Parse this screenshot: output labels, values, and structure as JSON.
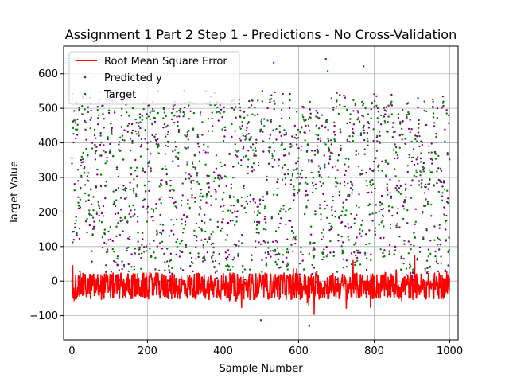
{
  "chart_data": {
    "type": "scatter",
    "title": "Assignment 1 Part 2 Step 1 - Predictions - No Cross-Validation",
    "xlabel": "Sample Number",
    "ylabel": "Target Value",
    "xlim": [
      -22,
      1022
    ],
    "ylim": [
      -170,
      680
    ],
    "xticks": [
      0,
      200,
      400,
      600,
      800,
      1000
    ],
    "yticks": [
      -100,
      0,
      100,
      200,
      300,
      400,
      500,
      600
    ],
    "grid": true,
    "legend_position": "top-left",
    "n_samples": 1000,
    "series": [
      {
        "name": "Root Mean Square Error",
        "kind": "line",
        "color": "#ff0000",
        "approx_mean": -15,
        "approx_range": [
          -113,
          75
        ]
      },
      {
        "name": "Predicted y",
        "kind": "points",
        "color": "#800080",
        "approx_range": [
          -130,
          643
        ]
      },
      {
        "name": "Target",
        "kind": "points",
        "color": "#008000",
        "approx_range": [
          25,
          610
        ]
      }
    ]
  }
}
